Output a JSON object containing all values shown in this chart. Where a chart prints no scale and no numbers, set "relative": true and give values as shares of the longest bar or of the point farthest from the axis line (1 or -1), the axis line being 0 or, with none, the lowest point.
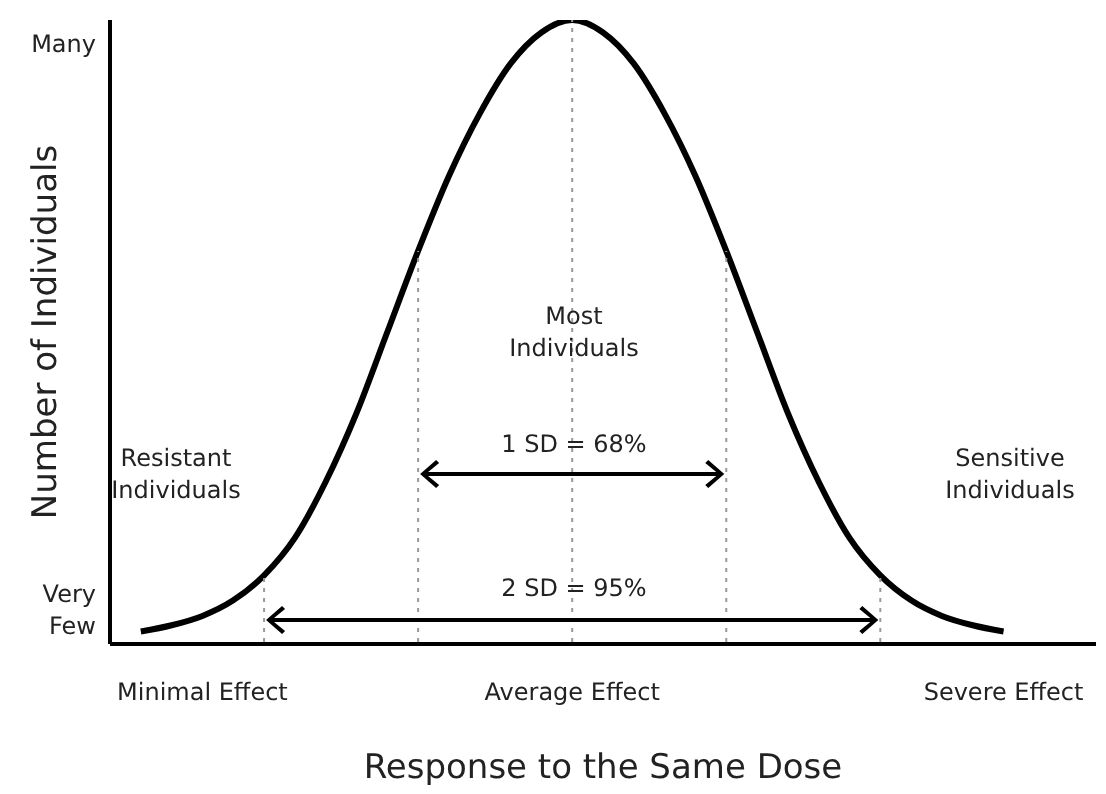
{
  "chart_data": {
    "type": "line",
    "relative": true,
    "xlabel": "Response to the Same Dose",
    "ylabel": "Number of Individuals",
    "categories": [
      null,
      null,
      null,
      "Minimal Effect",
      null,
      null,
      null,
      null,
      null,
      null,
      null,
      null,
      null,
      null,
      null,
      "Average Effect",
      null,
      null,
      null,
      null,
      null,
      null,
      null,
      null,
      null,
      null,
      null,
      null,
      null,
      "Severe Effect",
      null,
      null,
      null
    ],
    "series": [
      {
        "color": "#000000",
        "values": [
          null,
          0.02,
          0.03,
          0.045,
          0.07,
          0.11,
          0.17,
          0.26,
          0.37,
          0.5,
          0.63,
          0.75,
          0.85,
          0.93,
          0.98,
          1,
          0.98,
          0.93,
          0.85,
          0.75,
          0.63,
          0.5,
          0.37,
          0.26,
          0.17,
          0.11,
          0.07,
          0.045,
          0.03,
          0.02,
          null,
          null,
          null
        ]
      }
    ],
    "annotations": [
      "Many",
      "Very Few",
      "Most Individuals",
      "Resistant Individuals",
      "Sensitive Individuals",
      "1 SD = 68%",
      "2 SD = 95%"
    ]
  }
}
